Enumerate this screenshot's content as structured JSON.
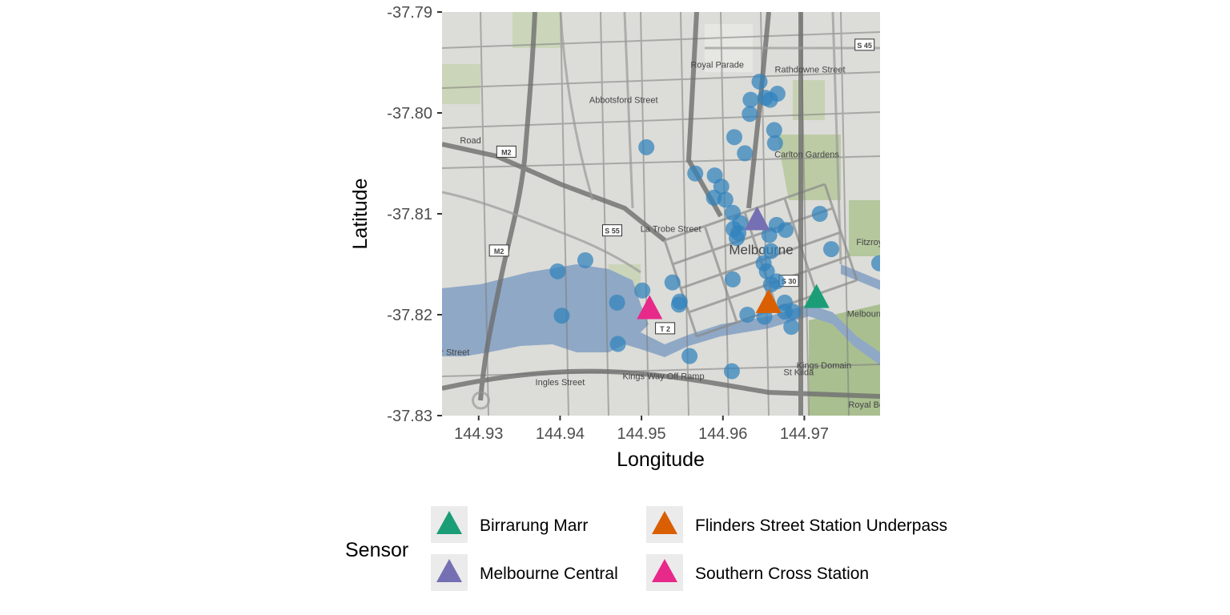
{
  "chart_data": {
    "type": "scatter",
    "xlabel": "Longitude",
    "ylabel": "Latitude",
    "xlim": [
      144.9255,
      144.9793
    ],
    "ylim": [
      -37.83,
      -37.79
    ],
    "x_ticks": [
      "144.93",
      "144.94",
      "144.95",
      "144.96",
      "144.97"
    ],
    "x_tick_values": [
      144.93,
      144.94,
      144.95,
      144.96,
      144.97
    ],
    "y_ticks": [
      "-37.79",
      "-37.80",
      "-37.81",
      "-37.82",
      "-37.83"
    ],
    "y_tick_values": [
      -37.79,
      -37.8,
      -37.81,
      -37.82,
      -37.83
    ],
    "grid": false,
    "basemap": "street map of Melbourne CBD",
    "map_labels": [
      {
        "text": "Melbourne",
        "lon": 144.9647,
        "lat": -37.814
      },
      {
        "text": "Carlton Gardens",
        "lon": 144.9703,
        "lat": -37.8044
      },
      {
        "text": "Kings Domain",
        "lon": 144.9724,
        "lat": -37.8253
      },
      {
        "text": "Fitzroy",
        "lon": 144.978,
        "lat": -37.8131
      },
      {
        "text": "Melbourne",
        "lon": 144.9778,
        "lat": -37.8202
      },
      {
        "text": "Royal Bo",
        "lon": 144.9776,
        "lat": -37.8292
      },
      {
        "text": "La Trobe Street",
        "lon": 144.9536,
        "lat": -37.8118
      },
      {
        "text": "Kings Way Off Ramp",
        "lon": 144.9527,
        "lat": -37.8264
      },
      {
        "text": "Royal Parade",
        "lon": 144.9593,
        "lat": -37.7955
      },
      {
        "text": "Abbotsford Street",
        "lon": 144.9478,
        "lat": -37.799
      },
      {
        "text": "Rathdowne Street",
        "lon": 144.9707,
        "lat": -37.796
      },
      {
        "text": "Road",
        "lon": 144.929,
        "lat": -37.803
      },
      {
        "text": "er Street",
        "lon": 144.9268,
        "lat": -37.824
      },
      {
        "text": "Ingles Street",
        "lon": 144.94,
        "lat": -37.827
      },
      {
        "text": "St Kilda",
        "lon": 144.9693,
        "lat": -37.826
      },
      {
        "text": "M2",
        "lon": 144.9334,
        "lat": -37.804
      },
      {
        "text": "M2",
        "lon": 144.9325,
        "lat": -37.8138
      },
      {
        "text": "S 55",
        "lon": 144.9464,
        "lat": -37.8118
      },
      {
        "text": "S 30",
        "lon": 144.9681,
        "lat": -37.8168
      },
      {
        "text": "T 2",
        "lon": 144.9529,
        "lat": -37.8215
      },
      {
        "text": "S 45",
        "lon": 144.9774,
        "lat": -37.7934
      }
    ],
    "series": [
      {
        "marker": "circle",
        "color": "#3182bd",
        "points": [
          [
            144.9645,
            -37.7969
          ],
          [
            144.9634,
            -37.7987
          ],
          [
            144.9652,
            -37.7985
          ],
          [
            144.9658,
            -37.7987
          ],
          [
            144.9667,
            -37.7981
          ],
          [
            144.9633,
            -37.8001
          ],
          [
            144.9663,
            -37.8017
          ],
          [
            144.9664,
            -37.803
          ],
          [
            144.9614,
            -37.8024
          ],
          [
            144.9627,
            -37.804
          ],
          [
            144.9506,
            -37.8034
          ],
          [
            144.9566,
            -37.806
          ],
          [
            144.959,
            -37.8062
          ],
          [
            144.9598,
            -37.8073
          ],
          [
            144.9603,
            -37.8086
          ],
          [
            144.9612,
            -37.8099
          ],
          [
            144.9589,
            -37.8084
          ],
          [
            144.9619,
            -37.8119
          ],
          [
            144.9617,
            -37.8124
          ],
          [
            144.9657,
            -37.8121
          ],
          [
            144.9666,
            -37.8111
          ],
          [
            144.9677,
            -37.8116
          ],
          [
            144.9659,
            -37.8137
          ],
          [
            144.965,
            -37.8149
          ],
          [
            144.9654,
            -37.8157
          ],
          [
            144.9666,
            -37.8167
          ],
          [
            144.9659,
            -37.817
          ],
          [
            144.9612,
            -37.8165
          ],
          [
            144.9621,
            -37.8109
          ],
          [
            144.9613,
            -37.8115
          ],
          [
            144.9719,
            -37.81
          ],
          [
            144.9733,
            -37.8135
          ],
          [
            144.9792,
            -37.8149
          ],
          [
            144.9397,
            -37.8157
          ],
          [
            144.9431,
            -37.8146
          ],
          [
            144.9402,
            -37.8201
          ],
          [
            144.947,
            -37.8188
          ],
          [
            144.9501,
            -37.8176
          ],
          [
            144.9538,
            -37.8168
          ],
          [
            144.9547,
            -37.8187
          ],
          [
            144.9546,
            -37.819
          ],
          [
            144.9471,
            -37.8229
          ],
          [
            144.9559,
            -37.8241
          ],
          [
            144.9611,
            -37.8256
          ],
          [
            144.963,
            -37.82
          ],
          [
            144.9651,
            -37.8202
          ],
          [
            144.9676,
            -37.8188
          ],
          [
            144.9686,
            -37.8197
          ],
          [
            144.9684,
            -37.8212
          ],
          [
            144.9676,
            -37.8197
          ]
        ]
      }
    ],
    "sensors": [
      {
        "name": "Birrarung Marr",
        "lon": 144.9715,
        "lat": -37.8183,
        "color": "#1b9e77"
      },
      {
        "name": "Melbourne Central",
        "lon": 144.9642,
        "lat": -37.8106,
        "color": "#7570b3"
      },
      {
        "name": "Flinders Street Station Underpass",
        "lon": 144.9656,
        "lat": -37.8188,
        "color": "#d95f02"
      },
      {
        "name": "Southern Cross Station",
        "lon": 144.951,
        "lat": -37.8194,
        "color": "#e7298a"
      }
    ]
  },
  "legend": {
    "title": "Sensor",
    "items": [
      {
        "label": "Birrarung Marr",
        "color": "#1b9e77"
      },
      {
        "label": "Flinders Street Station Underpass",
        "color": "#d95f02"
      },
      {
        "label": "Melbourne Central",
        "color": "#7570b3"
      },
      {
        "label": "Southern Cross Station",
        "color": "#e7298a"
      }
    ]
  }
}
